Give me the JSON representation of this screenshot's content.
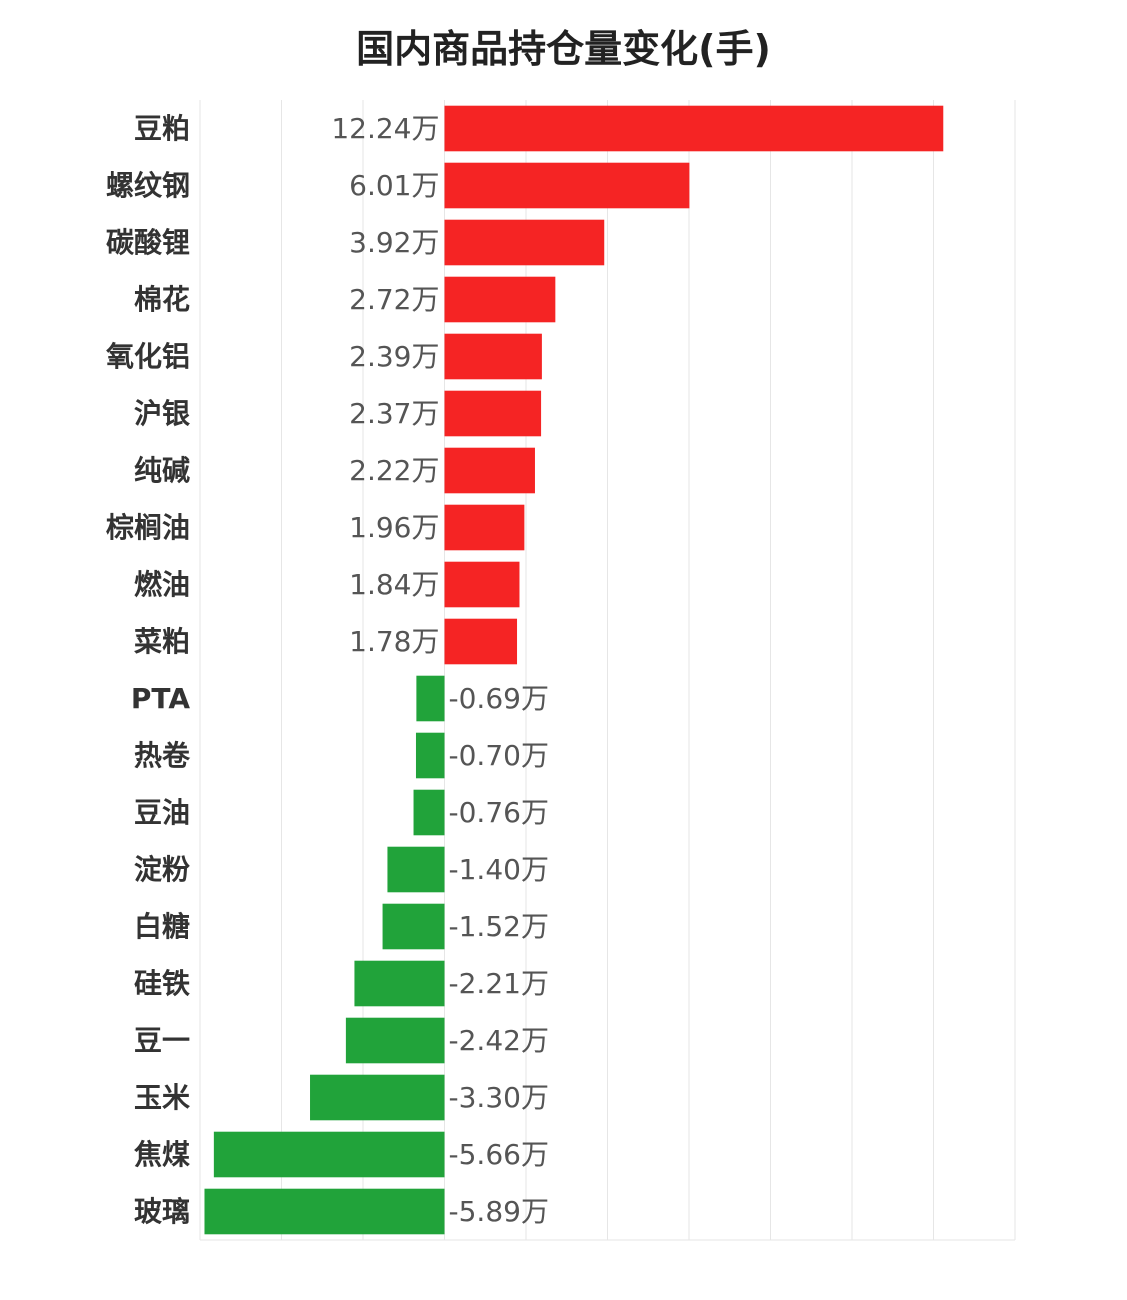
{
  "chart_data": {
    "type": "bar",
    "orientation": "horizontal",
    "title": "国内商品持仓量变化(手)",
    "xlabel": "",
    "ylabel": "",
    "grid": true,
    "xlim": [
      -6,
      14
    ],
    "unit_suffix": "万",
    "categories": [
      "豆粕",
      "螺纹钢",
      "碳酸锂",
      "棉花",
      "氧化铝",
      "沪银",
      "纯碱",
      "棕榈油",
      "燃油",
      "菜粕",
      "PTA",
      "热卷",
      "豆油",
      "淀粉",
      "白糖",
      "硅铁",
      "豆一",
      "玉米",
      "焦煤",
      "玻璃"
    ],
    "values": [
      12.24,
      6.01,
      3.92,
      2.72,
      2.39,
      2.37,
      2.22,
      1.96,
      1.84,
      1.78,
      -0.69,
      -0.7,
      -0.76,
      -1.4,
      -1.52,
      -2.21,
      -2.42,
      -3.3,
      -5.66,
      -5.89
    ],
    "value_labels": [
      "12.24万",
      "6.01万",
      "3.92万",
      "2.72万",
      "2.39万",
      "2.37万",
      "2.22万",
      "1.96万",
      "1.84万",
      "1.78万",
      "-0.69万",
      "-0.70万",
      "-0.76万",
      "-1.40万",
      "-1.52万",
      "-2.21万",
      "-2.42万",
      "-3.30万",
      "-5.66万",
      "-5.89万"
    ],
    "colors": {
      "positive": "#f52424",
      "negative": "#21a33a"
    }
  }
}
